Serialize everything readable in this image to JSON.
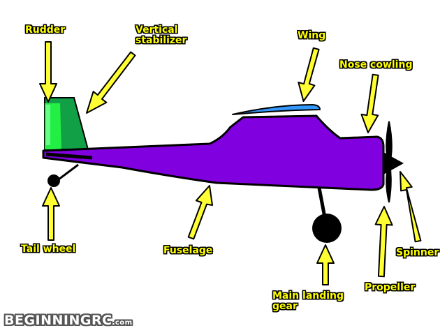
{
  "labels": {
    "rudder": "Rudder",
    "vertical_stabilizer": "Vertical\nstabilizer",
    "wing": "Wing",
    "nose_cowling": "Nose cowling",
    "tail_wheel": "Tail wheel",
    "fuselage": "Fuselage",
    "main_landing_gear": "Main landing\ngear",
    "propeller": "Propeller",
    "spinner": "Spinner"
  },
  "logo": {
    "main": "BEGINNINGRC",
    "suffix": ".com"
  },
  "colors": {
    "fuselage": "#8000e0",
    "rudder": "#22ee44",
    "stabilizer": "#11a045",
    "wing": "#3399ff",
    "label_text": "#ffff00",
    "arrow_fill": "#ffff33"
  }
}
